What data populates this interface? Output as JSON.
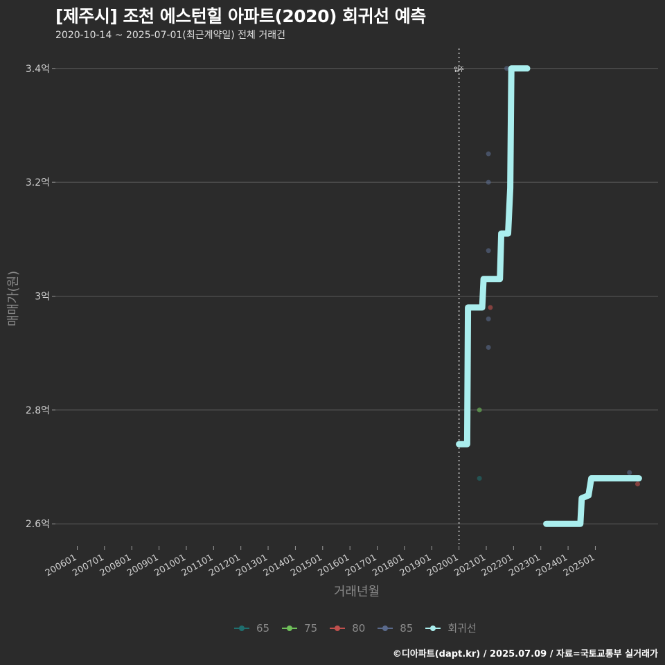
{
  "header": {
    "title": "[제주시] 조천 에스턴힐 아파트(2020) 회귀선 예측",
    "subtitle": "2020-10-14 ~ 2025-07-01(최근계약일) 전체 거래건"
  },
  "chart_data": {
    "type": "line",
    "xlabel": "거래년월",
    "ylabel": "매매가(원)",
    "ylim": [
      2.565,
      3.435
    ],
    "y_ticks": [
      {
        "value": 2.6,
        "label": "2.6억"
      },
      {
        "value": 2.8,
        "label": "2.8억"
      },
      {
        "value": 3.0,
        "label": "3억"
      },
      {
        "value": 3.2,
        "label": "3.2억"
      },
      {
        "value": 3.4,
        "label": "3.4억"
      }
    ],
    "xlim": [
      2005.2,
      2027.3
    ],
    "x_ticks": [
      {
        "value": 2006.0,
        "label": "200601"
      },
      {
        "value": 2007.0,
        "label": "200701"
      },
      {
        "value": 2008.0,
        "label": "200801"
      },
      {
        "value": 2009.0,
        "label": "200901"
      },
      {
        "value": 2010.0,
        "label": "201001"
      },
      {
        "value": 2011.0,
        "label": "201101"
      },
      {
        "value": 2012.0,
        "label": "201201"
      },
      {
        "value": 2013.0,
        "label": "201301"
      },
      {
        "value": 2014.0,
        "label": "201401"
      },
      {
        "value": 2015.0,
        "label": "201501"
      },
      {
        "value": 2016.0,
        "label": "201601"
      },
      {
        "value": 2017.0,
        "label": "201701"
      },
      {
        "value": 2018.0,
        "label": "201801"
      },
      {
        "value": 2019.0,
        "label": "201901"
      },
      {
        "value": 2020.0,
        "label": "202001"
      },
      {
        "value": 2021.0,
        "label": "202101"
      },
      {
        "value": 2022.0,
        "label": "202201"
      },
      {
        "value": 2023.0,
        "label": "202301"
      },
      {
        "value": 2024.0,
        "label": "202401"
      },
      {
        "value": 2025.0,
        "label": "202501"
      }
    ],
    "annotation": {
      "x": 2020.0,
      "label": "입주"
    },
    "legend": [
      {
        "name": "65",
        "color": "#1f6e6e"
      },
      {
        "name": "75",
        "color": "#6fc05a"
      },
      {
        "name": "80",
        "color": "#c0504d"
      },
      {
        "name": "85",
        "color": "#5a6a8c"
      },
      {
        "name": "회귀선",
        "color": "#aaeeee"
      }
    ],
    "series": [
      {
        "name": "65",
        "color": "#1f6e6e",
        "points": [
          [
            2020.75,
            2.68
          ]
        ]
      },
      {
        "name": "75",
        "color": "#6fc05a",
        "points": [
          [
            2020.75,
            2.8
          ]
        ]
      },
      {
        "name": "80",
        "color": "#c0504d",
        "points": [
          [
            2021.15,
            2.98
          ],
          [
            2026.55,
            2.67
          ]
        ]
      },
      {
        "name": "85",
        "color": "#5a6a8c",
        "points": [
          [
            2021.08,
            3.25
          ],
          [
            2021.08,
            3.2
          ],
          [
            2021.08,
            3.08
          ],
          [
            2021.08,
            2.96
          ],
          [
            2021.08,
            2.91
          ],
          [
            2021.75,
            3.4
          ],
          [
            2026.25,
            2.69
          ]
        ]
      }
    ],
    "regression": {
      "name": "회귀선",
      "color": "#aaeeee",
      "points": [
        [
          2020.0,
          2.74
        ],
        [
          2020.3,
          2.74
        ],
        [
          2020.33,
          2.98
        ],
        [
          2020.85,
          2.98
        ],
        [
          2020.9,
          3.03
        ],
        [
          2021.5,
          3.03
        ],
        [
          2021.55,
          3.11
        ],
        [
          2021.8,
          3.11
        ],
        [
          2021.88,
          3.19
        ],
        [
          2021.92,
          3.4
        ],
        [
          2022.5,
          3.4
        ]
      ]
    },
    "regression2": {
      "name": "회귀선",
      "color": "#aaeeee",
      "points": [
        [
          2023.2,
          2.6
        ],
        [
          2024.45,
          2.6
        ],
        [
          2024.5,
          2.645
        ],
        [
          2024.75,
          2.65
        ],
        [
          2024.85,
          2.68
        ],
        [
          2026.6,
          2.68
        ]
      ]
    }
  },
  "footer": {
    "caption": "©디아파트(dapt.kr) / 2025.07.09 / 자료=국토교통부 실거래가"
  }
}
